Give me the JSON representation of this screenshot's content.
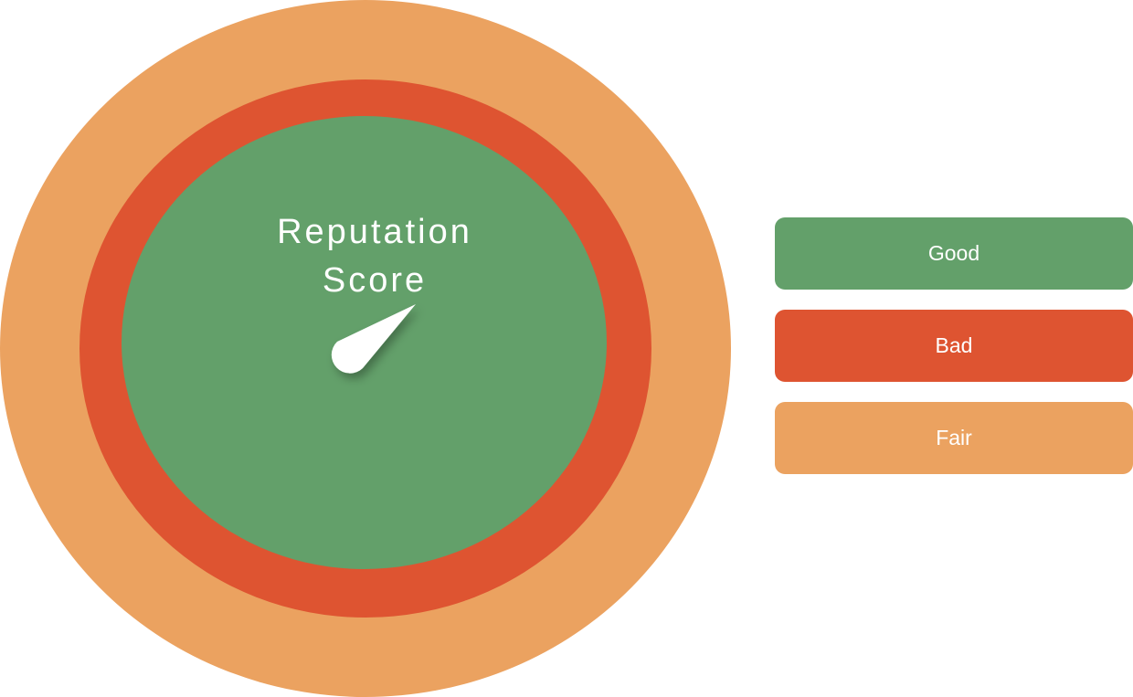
{
  "diagram": {
    "title_line1": "Reputation",
    "title_line2": "Score",
    "rings": [
      {
        "label": "Fair",
        "color": "#EBA260"
      },
      {
        "label": "Bad",
        "color": "#DE5431"
      },
      {
        "label": "Good",
        "color": "#63A06A"
      }
    ],
    "needle_color": "#FFFFFF"
  },
  "legend": [
    {
      "label": "Good",
      "color": "#63A06A"
    },
    {
      "label": "Bad",
      "color": "#DE5431"
    },
    {
      "label": "Fair",
      "color": "#EBA260"
    }
  ]
}
